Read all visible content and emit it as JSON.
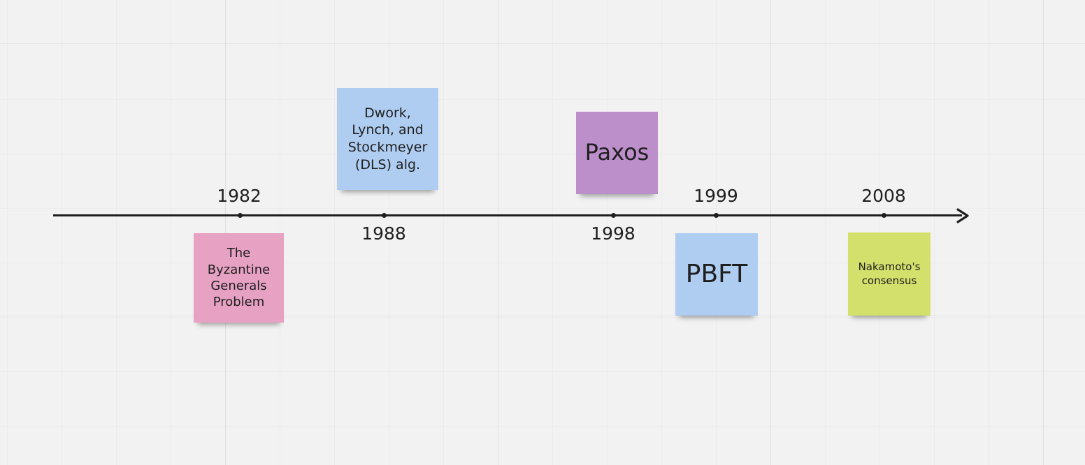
{
  "timeline": {
    "events": [
      {
        "year": "1982",
        "label": "The Byzantine Generals Problem",
        "color": "#e6a1c3"
      },
      {
        "year": "1988",
        "label": "Dwork, Lynch, and Stockmeyer (DLS) alg.",
        "color": "#afcdf1"
      },
      {
        "year": "1998",
        "label": "Paxos",
        "color": "#bc8fca"
      },
      {
        "year": "1999",
        "label": "PBFT",
        "color": "#afcdf1"
      },
      {
        "year": "2008",
        "label": "Nakamoto's consensus",
        "color": "#d3e06b"
      }
    ]
  }
}
